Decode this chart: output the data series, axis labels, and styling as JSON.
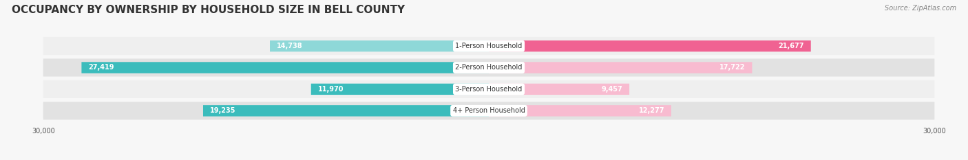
{
  "title": "OCCUPANCY BY OWNERSHIP BY HOUSEHOLD SIZE IN BELL COUNTY",
  "source": "Source: ZipAtlas.com",
  "categories": [
    "1-Person Household",
    "2-Person Household",
    "3-Person Household",
    "4+ Person Household"
  ],
  "owner_values": [
    14738,
    27419,
    11970,
    19235
  ],
  "renter_values": [
    21677,
    17722,
    9457,
    12277
  ],
  "owner_color_dark": "#3bbcbc",
  "owner_color_light": "#8ed8d8",
  "renter_color_dark": "#f06292",
  "renter_color_light": "#f8bbd0",
  "row_bg_light": "#efefef",
  "row_bg_dark": "#e2e2e2",
  "max_value": 30000,
  "title_fontsize": 11,
  "source_fontsize": 7,
  "bar_label_fontsize": 7,
  "value_fontsize": 7,
  "cat_fontsize": 7,
  "background_color": "#f7f7f7"
}
